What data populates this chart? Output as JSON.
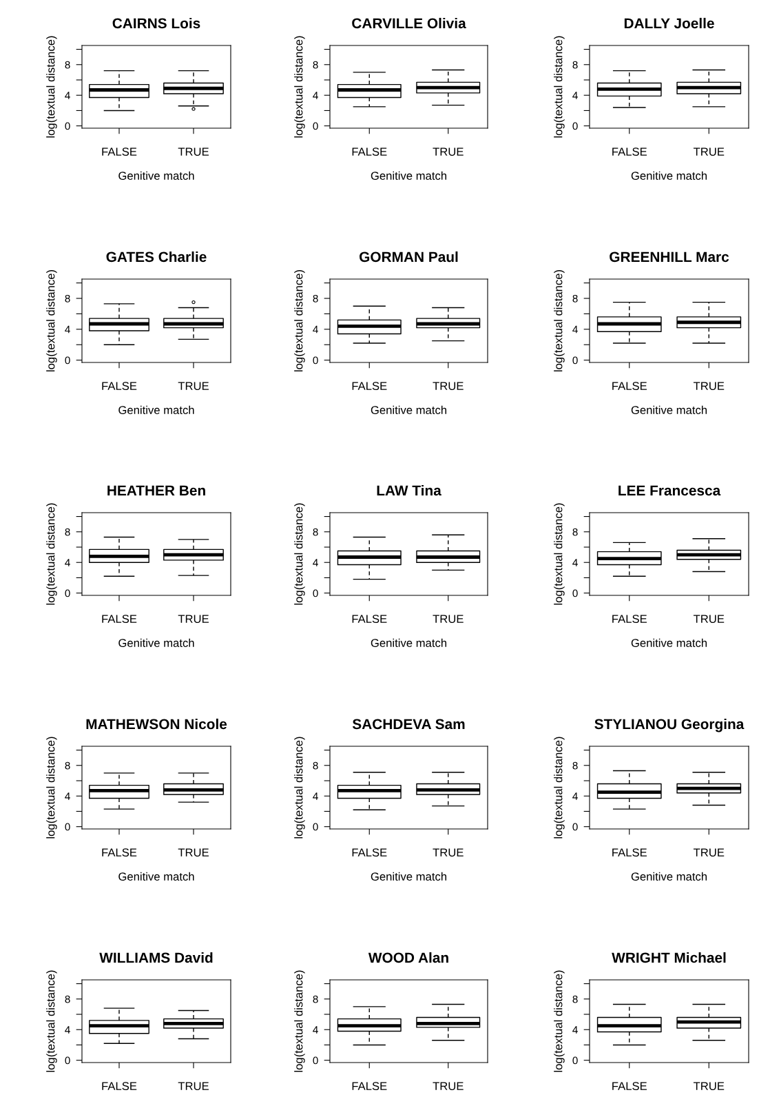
{
  "chart_data": [
    {
      "type": "box",
      "title": "CAIRNS Lois",
      "xlabel": "Genitive match",
      "ylabel": "log(textual distance)",
      "categories": [
        "FALSE",
        "TRUE"
      ],
      "boxes": [
        {
          "low": 2.0,
          "q1": 3.7,
          "median": 4.7,
          "q3": 5.4,
          "high": 7.2
        },
        {
          "low": 2.6,
          "q1": 4.2,
          "median": 4.9,
          "q3": 5.6,
          "high": 7.2,
          "outliers": [
            2.2
          ]
        }
      ],
      "ylim": [
        -0.3,
        10.5
      ],
      "yticks": [
        0,
        {
          "value": 2,
          "label": null
        },
        4,
        {
          "value": 6,
          "label": null
        },
        8,
        {
          "value": 10,
          "label": null
        }
      ],
      "grid": false
    },
    {
      "type": "box",
      "title": "CARVILLE Olivia",
      "xlabel": "Genitive match",
      "ylabel": "log(textual distance)",
      "categories": [
        "FALSE",
        "TRUE"
      ],
      "boxes": [
        {
          "low": 2.5,
          "q1": 3.7,
          "median": 4.7,
          "q3": 5.4,
          "high": 7.0
        },
        {
          "low": 2.7,
          "q1": 4.3,
          "median": 5.0,
          "q3": 5.7,
          "high": 7.3
        }
      ],
      "ylim": [
        -0.3,
        10.5
      ],
      "yticks": [
        0,
        {
          "value": 2,
          "label": null
        },
        4,
        {
          "value": 6,
          "label": null
        },
        8,
        {
          "value": 10,
          "label": null
        }
      ],
      "grid": false
    },
    {
      "type": "box",
      "title": "DALLY Joelle",
      "xlabel": "Genitive match",
      "ylabel": "log(textual distance)",
      "categories": [
        "FALSE",
        "TRUE"
      ],
      "boxes": [
        {
          "low": 2.4,
          "q1": 3.9,
          "median": 4.8,
          "q3": 5.6,
          "high": 7.2
        },
        {
          "low": 2.5,
          "q1": 4.2,
          "median": 5.0,
          "q3": 5.7,
          "high": 7.3
        }
      ],
      "ylim": [
        -0.3,
        10.5
      ],
      "yticks": [
        0,
        {
          "value": 2,
          "label": null
        },
        4,
        {
          "value": 6,
          "label": null
        },
        8,
        {
          "value": 10,
          "label": null
        }
      ],
      "grid": false
    },
    {
      "type": "box",
      "title": "GATES Charlie",
      "xlabel": "Genitive match",
      "ylabel": "log(textual distance)",
      "categories": [
        "FALSE",
        "TRUE"
      ],
      "boxes": [
        {
          "low": 2.0,
          "q1": 3.8,
          "median": 4.7,
          "q3": 5.4,
          "high": 7.3
        },
        {
          "low": 2.7,
          "q1": 4.2,
          "median": 4.7,
          "q3": 5.4,
          "high": 6.8,
          "outliers": [
            7.5
          ]
        }
      ],
      "ylim": [
        -0.3,
        10.5
      ],
      "yticks": [
        0,
        {
          "value": 2,
          "label": null
        },
        4,
        {
          "value": 6,
          "label": null
        },
        8,
        {
          "value": 10,
          "label": null
        }
      ],
      "grid": false
    },
    {
      "type": "box",
      "title": "GORMAN Paul",
      "xlabel": "Genitive match",
      "ylabel": "log(textual distance)",
      "categories": [
        "FALSE",
        "TRUE"
      ],
      "boxes": [
        {
          "low": 2.2,
          "q1": 3.4,
          "median": 4.4,
          "q3": 5.2,
          "high": 7.0
        },
        {
          "low": 2.5,
          "q1": 4.2,
          "median": 4.7,
          "q3": 5.4,
          "high": 6.8
        }
      ],
      "ylim": [
        -0.3,
        10.5
      ],
      "yticks": [
        0,
        {
          "value": 2,
          "label": null
        },
        4,
        {
          "value": 6,
          "label": null
        },
        8,
        {
          "value": 10,
          "label": null
        }
      ],
      "grid": false
    },
    {
      "type": "box",
      "title": "GREENHILL Marc",
      "xlabel": "Genitive match",
      "ylabel": "log(textual distance)",
      "categories": [
        "FALSE",
        "TRUE"
      ],
      "boxes": [
        {
          "low": 2.2,
          "q1": 3.7,
          "median": 4.7,
          "q3": 5.6,
          "high": 7.5
        },
        {
          "low": 2.2,
          "q1": 4.2,
          "median": 4.9,
          "q3": 5.6,
          "high": 7.5
        }
      ],
      "ylim": [
        -0.3,
        10.5
      ],
      "yticks": [
        0,
        {
          "value": 2,
          "label": null
        },
        4,
        {
          "value": 6,
          "label": null
        },
        8,
        {
          "value": 10,
          "label": null
        }
      ],
      "grid": false
    },
    {
      "type": "box",
      "title": "HEATHER Ben",
      "xlabel": "Genitive match",
      "ylabel": "log(textual distance)",
      "categories": [
        "FALSE",
        "TRUE"
      ],
      "boxes": [
        {
          "low": 2.2,
          "q1": 4.0,
          "median": 4.8,
          "q3": 5.7,
          "high": 7.3
        },
        {
          "low": 2.3,
          "q1": 4.3,
          "median": 5.0,
          "q3": 5.7,
          "high": 7.0
        }
      ],
      "ylim": [
        -0.3,
        10.5
      ],
      "yticks": [
        0,
        {
          "value": 2,
          "label": null
        },
        4,
        {
          "value": 6,
          "label": null
        },
        8,
        {
          "value": 10,
          "label": null
        }
      ],
      "grid": false
    },
    {
      "type": "box",
      "title": "LAW Tina",
      "xlabel": "Genitive match",
      "ylabel": "log(textual distance)",
      "categories": [
        "FALSE",
        "TRUE"
      ],
      "boxes": [
        {
          "low": 1.8,
          "q1": 3.7,
          "median": 4.7,
          "q3": 5.5,
          "high": 7.3
        },
        {
          "low": 3.0,
          "q1": 4.0,
          "median": 4.7,
          "q3": 5.5,
          "high": 7.6
        }
      ],
      "ylim": [
        -0.3,
        10.5
      ],
      "yticks": [
        0,
        {
          "value": 2,
          "label": null
        },
        4,
        {
          "value": 6,
          "label": null
        },
        8,
        {
          "value": 10,
          "label": null
        }
      ],
      "grid": false
    },
    {
      "type": "box",
      "title": "LEE Francesca",
      "xlabel": "Genitive match",
      "ylabel": "log(textual distance)",
      "categories": [
        "FALSE",
        "TRUE"
      ],
      "boxes": [
        {
          "low": 2.2,
          "q1": 3.7,
          "median": 4.5,
          "q3": 5.4,
          "high": 6.6
        },
        {
          "low": 2.8,
          "q1": 4.4,
          "median": 5.0,
          "q3": 5.6,
          "high": 7.1
        }
      ],
      "ylim": [
        -0.3,
        10.5
      ],
      "yticks": [
        0,
        {
          "value": 2,
          "label": null
        },
        4,
        {
          "value": 6,
          "label": null
        },
        8,
        {
          "value": 10,
          "label": null
        }
      ],
      "grid": false
    },
    {
      "type": "box",
      "title": "MATHEWSON Nicole",
      "xlabel": "Genitive match",
      "ylabel": "log(textual distance)",
      "categories": [
        "FALSE",
        "TRUE"
      ],
      "boxes": [
        {
          "low": 2.3,
          "q1": 3.7,
          "median": 4.7,
          "q3": 5.4,
          "high": 7.0
        },
        {
          "low": 3.2,
          "q1": 4.2,
          "median": 4.8,
          "q3": 5.6,
          "high": 7.0
        }
      ],
      "ylim": [
        -0.3,
        10.5
      ],
      "yticks": [
        0,
        {
          "value": 2,
          "label": null
        },
        4,
        {
          "value": 6,
          "label": null
        },
        8,
        {
          "value": 10,
          "label": null
        }
      ],
      "grid": false
    },
    {
      "type": "box",
      "title": "SACHDEVA Sam",
      "xlabel": "Genitive match",
      "ylabel": "log(textual distance)",
      "categories": [
        "FALSE",
        "TRUE"
      ],
      "boxes": [
        {
          "low": 2.2,
          "q1": 3.7,
          "median": 4.7,
          "q3": 5.4,
          "high": 7.1
        },
        {
          "low": 2.7,
          "q1": 4.2,
          "median": 4.8,
          "q3": 5.6,
          "high": 7.1
        }
      ],
      "ylim": [
        -0.3,
        10.5
      ],
      "yticks": [
        0,
        {
          "value": 2,
          "label": null
        },
        4,
        {
          "value": 6,
          "label": null
        },
        8,
        {
          "value": 10,
          "label": null
        }
      ],
      "grid": false
    },
    {
      "type": "box",
      "title": "STYLIANOU Georgina",
      "xlabel": "Genitive match",
      "ylabel": "log(textual distance)",
      "categories": [
        "FALSE",
        "TRUE"
      ],
      "boxes": [
        {
          "low": 2.3,
          "q1": 3.7,
          "median": 4.5,
          "q3": 5.6,
          "high": 7.3
        },
        {
          "low": 2.8,
          "q1": 4.4,
          "median": 5.0,
          "q3": 5.6,
          "high": 7.1
        }
      ],
      "ylim": [
        -0.3,
        10.5
      ],
      "yticks": [
        0,
        {
          "value": 2,
          "label": null
        },
        4,
        {
          "value": 6,
          "label": null
        },
        8,
        {
          "value": 10,
          "label": null
        }
      ],
      "grid": false
    },
    {
      "type": "box",
      "title": "WILLIAMS David",
      "ylabel": "log(textual distance)",
      "categories": [
        "FALSE",
        "TRUE"
      ],
      "boxes": [
        {
          "low": 2.2,
          "q1": 3.5,
          "median": 4.5,
          "q3": 5.2,
          "high": 6.8
        },
        {
          "low": 2.8,
          "q1": 4.2,
          "median": 4.8,
          "q3": 5.4,
          "high": 6.5
        }
      ],
      "ylim": [
        -0.3,
        10.5
      ],
      "yticks": [
        0,
        {
          "value": 2,
          "label": null
        },
        4,
        {
          "value": 6,
          "label": null
        },
        8,
        {
          "value": 10,
          "label": null
        }
      ],
      "grid": false
    },
    {
      "type": "box",
      "title": "WOOD Alan",
      "ylabel": "log(textual distance)",
      "categories": [
        "FALSE",
        "TRUE"
      ],
      "boxes": [
        {
          "low": 2.0,
          "q1": 3.8,
          "median": 4.5,
          "q3": 5.4,
          "high": 7.0
        },
        {
          "low": 2.6,
          "q1": 4.3,
          "median": 4.8,
          "q3": 5.6,
          "high": 7.3
        }
      ],
      "ylim": [
        -0.3,
        10.5
      ],
      "yticks": [
        0,
        {
          "value": 2,
          "label": null
        },
        4,
        {
          "value": 6,
          "label": null
        },
        8,
        {
          "value": 10,
          "label": null
        }
      ],
      "grid": false
    },
    {
      "type": "box",
      "title": "WRIGHT Michael",
      "ylabel": "log(textual distance)",
      "categories": [
        "FALSE",
        "TRUE"
      ],
      "boxes": [
        {
          "low": 2.0,
          "q1": 3.7,
          "median": 4.5,
          "q3": 5.6,
          "high": 7.3
        },
        {
          "low": 2.6,
          "q1": 4.2,
          "median": 5.0,
          "q3": 5.6,
          "high": 7.3
        }
      ],
      "ylim": [
        -0.3,
        10.5
      ],
      "yticks": [
        0,
        {
          "value": 2,
          "label": null
        },
        4,
        {
          "value": 6,
          "label": null
        },
        8,
        {
          "value": 10,
          "label": null
        }
      ],
      "grid": false
    }
  ]
}
